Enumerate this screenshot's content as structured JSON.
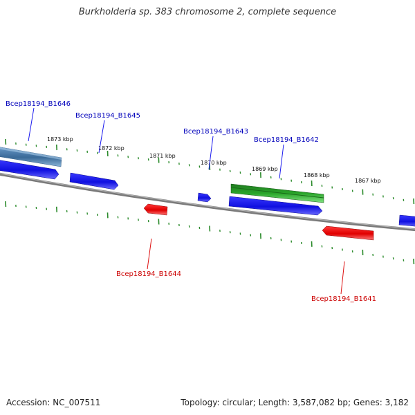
{
  "title": "Burkholderia sp. 383 chromosome 2, complete sequence",
  "footer": {
    "accession": "Accession: NC_007511",
    "summary": "Topology: circular; Length: 3,587,082 bp; Genes: 3,182"
  },
  "colors": {
    "forward_gene": "#1a1aee",
    "reverse_gene": "#e81010",
    "selected_gene": "#4a7fb0",
    "highlight_gene": "#2fa02f",
    "tick": "#2a8a2a",
    "backbone": "#7a7a7a",
    "forward_label": "#0000bb",
    "reverse_label": "#cc0000",
    "tick_label": "#111111"
  },
  "tick_labels": [
    {
      "kbp": 1873,
      "text": "1873 kbp"
    },
    {
      "kbp": 1872,
      "text": "1872 kbp"
    },
    {
      "kbp": 1871,
      "text": "1871 kbp"
    },
    {
      "kbp": 1870,
      "text": "1870 kbp"
    },
    {
      "kbp": 1869,
      "text": "1869 kbp"
    },
    {
      "kbp": 1868,
      "text": "1868 kbp"
    },
    {
      "kbp": 1867,
      "text": "1867 kbp"
    }
  ],
  "gene_labels": [
    {
      "id": "Bcep18194_B1646",
      "strand": "forward"
    },
    {
      "id": "Bcep18194_B1645",
      "strand": "forward"
    },
    {
      "id": "Bcep18194_B1643",
      "strand": "forward"
    },
    {
      "id": "Bcep18194_B1642",
      "strand": "forward"
    },
    {
      "id": "Bcep18194_B1644",
      "strand": "reverse"
    },
    {
      "id": "Bcep18194_B1641",
      "strand": "reverse"
    }
  ]
}
